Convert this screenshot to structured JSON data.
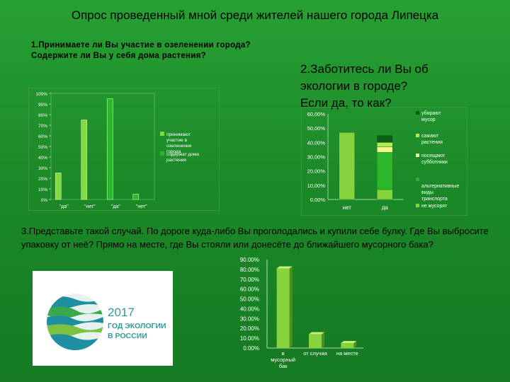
{
  "header": {
    "title": "Опрос проведенный мной среди жителей нашего города Липецка"
  },
  "questions": {
    "q1_line1": "1.Принимаете ли Вы участие в озеленении города?",
    "q1_line2": "Содержите ли Вы у себя дома растения?",
    "q2_line1": "2.Заботитесь ли Вы об",
    "q2_line2": "экологии в городе?",
    "q2_line3": "Если да, то как?",
    "q3": "3.Представьте такой случай. По дороге куда-либо Вы проголодались и купили себе булку. Где  Вы выбросите упаковку от неё? Прямо на месте, где Вы стояли или донесёте до ближайшего мусорного бака?"
  },
  "logo": {
    "year": "2017",
    "line1": "ГОД ЭКОЛОГИИ",
    "line2": "В РОССИИ"
  },
  "colors": {
    "page_green": "#1f8a2a",
    "bar_dark": "#1e9a1e",
    "bar_light": "#7fdc3f",
    "bar_main": "#2ab82a",
    "stack_yellow": "#f2f78a",
    "logo_teal": "#1e8fa0",
    "logo_green": "#3aa84c"
  },
  "chart_data": [
    {
      "type": "bar",
      "title": "",
      "categories": [
        "\"да\"",
        "\"нет\"",
        "\"да\"",
        "\"нет\""
      ],
      "series": [
        {
          "name": "принимают участие в озеленении города",
          "values": [
            25,
            75,
            null,
            null
          ],
          "color": "#7fdc3f"
        },
        {
          "name": "содержат дома растения",
          "values": [
            null,
            null,
            95,
            5
          ],
          "color": "#2ab82a"
        }
      ],
      "ylim": [
        0,
        100
      ],
      "yticks": [
        "0%",
        "10%",
        "20%",
        "30%",
        "40%",
        "50%",
        "60%",
        "70%",
        "80%",
        "90%",
        "100%"
      ],
      "legend": "right"
    },
    {
      "type": "bar",
      "stacked": true,
      "title": "",
      "categories": [
        "нет",
        "да"
      ],
      "series": [
        {
          "name": "убирают мусор",
          "values": [
            0,
            5
          ],
          "color": "#0b5e14"
        },
        {
          "name": "сажают растения",
          "values": [
            0,
            3
          ],
          "color": "#b8ea52"
        },
        {
          "name": "посещают субботники",
          "values": [
            0,
            4
          ],
          "color": "#f2f78a"
        },
        {
          "name": "альтернативные виды транспорта",
          "values": [
            0,
            26
          ],
          "color": "#2ab82a"
        },
        {
          "name": "не мусорят",
          "values": [
            47,
            7
          ],
          "color": "#86d33c"
        }
      ],
      "ylim": [
        0,
        60
      ],
      "yticks": [
        "0,00%",
        "10,00%",
        "20,00%",
        "30,00%",
        "40,00%",
        "50,00%",
        "60,00%"
      ],
      "legend": "right"
    },
    {
      "type": "bar",
      "title": "",
      "categories": [
        "в мусорный бак",
        "от случая",
        "на месте"
      ],
      "values": [
        81,
        14,
        5
      ],
      "color": "#86d33c",
      "ylim": [
        0,
        90
      ],
      "yticks": [
        "0.00%",
        "10.00%",
        "20.00%",
        "30.00%",
        "40.00%",
        "50.00%",
        "60.00%",
        "70.00%",
        "80.00%",
        "90.00%"
      ]
    }
  ]
}
